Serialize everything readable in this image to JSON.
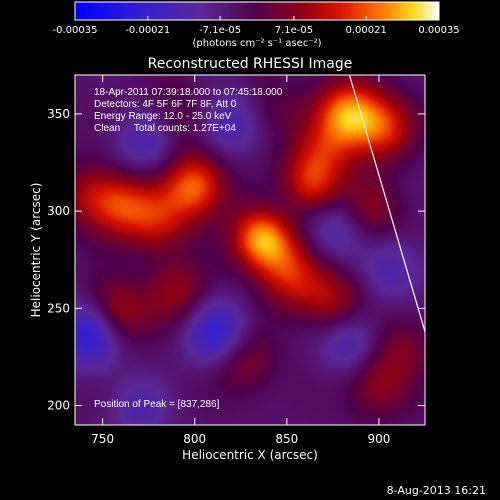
{
  "chart_data": {
    "type": "heatmap",
    "title": "Reconstructed RHESSI Image",
    "xlabel": "Heliocentric X (arcsec)",
    "ylabel": "Heliocentric Y (arcsec)",
    "xlim": [
      735,
      925
    ],
    "ylim": [
      190,
      370
    ],
    "xticks": [
      750,
      800,
      850,
      900
    ],
    "yticks": [
      200,
      250,
      300,
      350
    ],
    "colorbar": {
      "unit_label": "(photons cm⁻² s⁻¹ asec⁻²)",
      "range": [
        -0.00035,
        0.00035
      ],
      "tick_values": [
        -0.00035,
        -0.00021,
        -7.1e-05,
        7.1e-05,
        0.00021,
        0.00035
      ],
      "tick_labels": [
        "-0.00035",
        "-0.00021",
        "-7.1e-05",
        "7.1e-05",
        "0.00021",
        "0.00035"
      ]
    },
    "info_lines": [
      "18-Apr-2011 07:39:18.000 to 07:45:18.000",
      "Detectors: 4F 5F 6F 7F 8F, Att 0",
      "Energy Range: 12.0 - 25.0 keV",
      "Clean     Total counts: 1.27E+04"
    ],
    "peak_label": "Position of Peak = [837,286]",
    "peak": [
      837,
      286
    ],
    "limb_line": [
      [
        884,
        370
      ],
      [
        925,
        238
      ]
    ],
    "sources": [
      {
        "x": 838,
        "y": 286,
        "value": 0.00035
      },
      {
        "x": 862,
        "y": 312,
        "value": 0.00022
      },
      {
        "x": 800,
        "y": 313,
        "value": 0.00026
      },
      {
        "x": 780,
        "y": 295,
        "value": 0.00016
      },
      {
        "x": 760,
        "y": 303,
        "value": 0.00019
      },
      {
        "x": 742,
        "y": 308,
        "value": 0.00012
      },
      {
        "x": 883,
        "y": 350,
        "value": 0.00028
      },
      {
        "x": 902,
        "y": 343,
        "value": 0.0002
      },
      {
        "x": 870,
        "y": 330,
        "value": 0.00013
      },
      {
        "x": 895,
        "y": 300,
        "value": 0.00012
      },
      {
        "x": 853,
        "y": 266,
        "value": 0.00017
      },
      {
        "x": 875,
        "y": 253,
        "value": 0.00015
      },
      {
        "x": 755,
        "y": 246,
        "value": 0.00022
      },
      {
        "x": 790,
        "y": 258,
        "value": 0.00013
      },
      {
        "x": 826,
        "y": 223,
        "value": 0.00012
      },
      {
        "x": 912,
        "y": 230,
        "value": 0.0001
      },
      {
        "x": 898,
        "y": 210,
        "value": 0.00012
      },
      {
        "x": 790,
        "y": 350,
        "value": 7e-05
      },
      {
        "x": 843,
        "y": 352,
        "value": 6e-05
      },
      {
        "x": 745,
        "y": 238,
        "value": -0.00028
      },
      {
        "x": 812,
        "y": 237,
        "value": -0.0002
      },
      {
        "x": 818,
        "y": 345,
        "value": -0.00013
      },
      {
        "x": 773,
        "y": 335,
        "value": -0.00012
      },
      {
        "x": 848,
        "y": 300,
        "value": -0.0001
      },
      {
        "x": 876,
        "y": 292,
        "value": -0.00013
      },
      {
        "x": 884,
        "y": 233,
        "value": -0.00014
      },
      {
        "x": 908,
        "y": 270,
        "value": -0.00011
      },
      {
        "x": 770,
        "y": 198,
        "value": -0.0001
      }
    ]
  },
  "footer_date": "8-Aug-2013 16:21"
}
